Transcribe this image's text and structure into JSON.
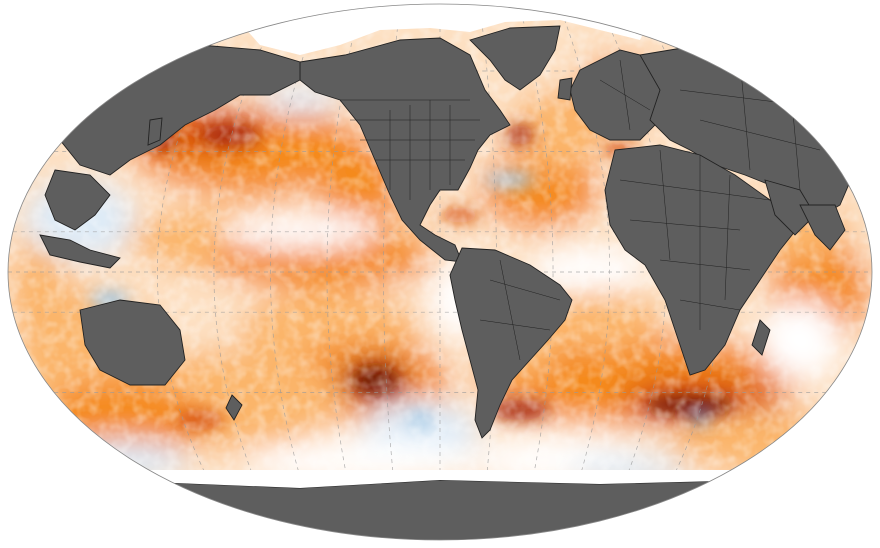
{
  "map": {
    "projection": "robinson-like-ellipse",
    "graticule": true,
    "colors": {
      "land": "#5e5e5e",
      "coast_line": "#222222",
      "border_line": "#1a1a1a",
      "ice": "#ffffff",
      "neutral": "#ffffff",
      "warm_1": "#fde0c2",
      "warm_2": "#fbb56a",
      "warm_3": "#f58a1f",
      "warm_4": "#d9550e",
      "warm_5": "#a82a08",
      "warm_6": "#6e1204",
      "cool_1": "#deebf7",
      "cool_2": "#a9cde8",
      "cool_3": "#4e8cc8",
      "cool_4": "#1f3f9a",
      "graticule": "#9a9a9a"
    }
  }
}
